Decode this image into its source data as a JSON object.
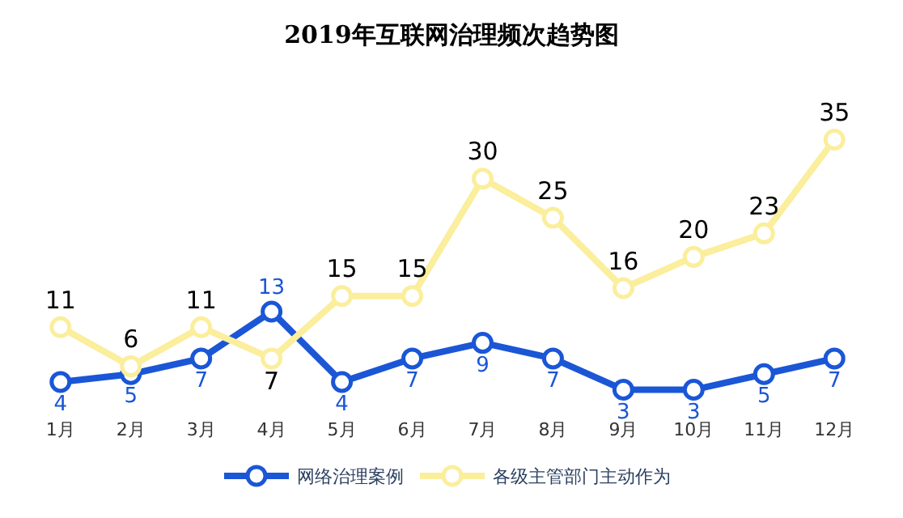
{
  "chart_data": {
    "type": "line",
    "title": "2019年互联网治理频次趋势图",
    "categories": [
      "1月",
      "2月",
      "3月",
      "4月",
      "5月",
      "6月",
      "7月",
      "8月",
      "9月",
      "10月",
      "11月",
      "12月"
    ],
    "series": [
      {
        "name": "网络治理案例",
        "color": "#1a56d6",
        "values": [
          4,
          5,
          7,
          13,
          4,
          7,
          9,
          7,
          3,
          3,
          5,
          7
        ]
      },
      {
        "name": "各级主管部门主动作为",
        "color": "#fbee9c",
        "values": [
          11,
          6,
          11,
          7,
          15,
          15,
          30,
          25,
          16,
          20,
          23,
          35
        ]
      }
    ],
    "data_labels": true,
    "marker": "circle",
    "line_style": "solid",
    "legend": "bottom"
  }
}
